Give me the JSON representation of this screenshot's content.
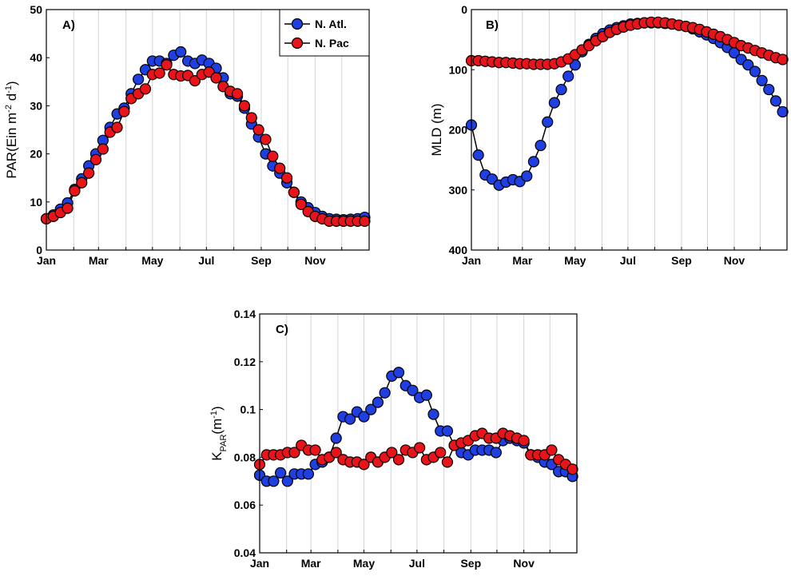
{
  "chart_data": [
    {
      "type": "line",
      "panel": "A)",
      "ylabel": [
        {
          "text": "PAR(Ein m"
        },
        {
          "text": "-2",
          "shift": "super"
        },
        {
          "text": " d"
        },
        {
          "text": "-1",
          "shift": "super"
        },
        {
          "text": ")"
        }
      ],
      "x": [
        1,
        9,
        17,
        25,
        33,
        41,
        49,
        57,
        65,
        73,
        81,
        89,
        97,
        105,
        113,
        121,
        129,
        137,
        145,
        153,
        161,
        169,
        177,
        185,
        193,
        201,
        209,
        217,
        225,
        233,
        241,
        249,
        257,
        265,
        273,
        281,
        289,
        297,
        305,
        313,
        321,
        329,
        337,
        345,
        353,
        361
      ],
      "xlim": [
        1,
        366
      ],
      "xticks": [
        {
          "value": 1,
          "label": "Jan"
        },
        {
          "value": 32,
          "label": null
        },
        {
          "value": 60,
          "label": "Mar"
        },
        {
          "value": 91,
          "label": null
        },
        {
          "value": 121,
          "label": "May"
        },
        {
          "value": 152,
          "label": null
        },
        {
          "value": 182,
          "label": "Jul"
        },
        {
          "value": 213,
          "label": null
        },
        {
          "value": 244,
          "label": "Sep"
        },
        {
          "value": 274,
          "label": null
        },
        {
          "value": 305,
          "label": "Nov"
        },
        {
          "value": 335,
          "label": null
        }
      ],
      "ylim": [
        0,
        50
      ],
      "yticks": [
        0,
        10,
        20,
        30,
        40,
        50
      ],
      "grid": true,
      "legend": "upper right",
      "series": [
        {
          "name": "N. Atl.",
          "color": "#1f3fe0",
          "values": [
            6.5,
            7.3,
            8.5,
            9.8,
            12.6,
            14.8,
            17.5,
            20,
            22.8,
            25.5,
            28.3,
            29.5,
            32.5,
            35.5,
            37.5,
            39.3,
            39.3,
            38.8,
            40.5,
            41.2,
            39.3,
            38.8,
            39.5,
            38.8,
            37.8,
            35.8,
            32.5,
            32,
            29.5,
            26.2,
            23.5,
            20,
            17.5,
            16,
            14,
            12,
            10,
            8.8,
            7.8,
            7,
            6.5,
            6.4,
            6.3,
            6.4,
            6.5,
            6.8
          ]
        },
        {
          "name": "N. Pac",
          "color": "#e8141a",
          "values": [
            6.5,
            7,
            7.8,
            8.7,
            12.3,
            14,
            16,
            18.8,
            21,
            24.5,
            25.5,
            28.8,
            31.5,
            32.5,
            33.5,
            36.5,
            36.8,
            38.5,
            36.5,
            36.2,
            36.3,
            35.2,
            36.5,
            37,
            35.8,
            34,
            33,
            32.5,
            30,
            27.5,
            25,
            23,
            19.5,
            17,
            15,
            12,
            9.5,
            8,
            7,
            6.5,
            6,
            6,
            6,
            6,
            6,
            6
          ]
        }
      ]
    },
    {
      "type": "line",
      "panel": "B)",
      "ylabel": [
        {
          "text": "MLD (m)"
        }
      ],
      "x": [
        1,
        9,
        17,
        25,
        33,
        41,
        49,
        57,
        65,
        73,
        81,
        89,
        97,
        105,
        113,
        121,
        129,
        137,
        145,
        153,
        161,
        169,
        177,
        185,
        193,
        201,
        209,
        217,
        225,
        233,
        241,
        249,
        257,
        265,
        273,
        281,
        289,
        297,
        305,
        313,
        321,
        329,
        337,
        345,
        353,
        361
      ],
      "xlim": [
        1,
        366
      ],
      "xticks": [
        {
          "value": 1,
          "label": "Jan"
        },
        {
          "value": 32,
          "label": null
        },
        {
          "value": 60,
          "label": "Mar"
        },
        {
          "value": 91,
          "label": null
        },
        {
          "value": 121,
          "label": "May"
        },
        {
          "value": 152,
          "label": null
        },
        {
          "value": 182,
          "label": "Jul"
        },
        {
          "value": 213,
          "label": null
        },
        {
          "value": 244,
          "label": "Sep"
        },
        {
          "value": 274,
          "label": null
        },
        {
          "value": 305,
          "label": "Nov"
        },
        {
          "value": 335,
          "label": null
        }
      ],
      "ylim": [
        400,
        0
      ],
      "yticks": [
        0,
        100,
        200,
        300,
        400
      ],
      "grid": true,
      "series": [
        {
          "color": "#1f3fe0",
          "values": [
            192,
            242,
            275,
            282,
            292,
            287,
            283,
            286,
            277,
            253,
            226,
            187,
            155,
            133,
            111,
            92,
            70,
            58,
            48,
            40,
            34,
            30,
            27,
            24,
            23,
            22,
            22,
            22,
            23,
            24,
            26,
            28,
            32,
            37,
            42,
            48,
            55,
            63,
            72,
            83,
            92,
            103,
            118,
            133,
            152,
            170
          ]
        },
        {
          "color": "#e8141a",
          "values": [
            85,
            85,
            86,
            87,
            88,
            88,
            89,
            90,
            90,
            91,
            91,
            91,
            90,
            87,
            82,
            75,
            67,
            60,
            52,
            45,
            38,
            33,
            29,
            26,
            24,
            22,
            21,
            21,
            22,
            24,
            26,
            28,
            30,
            33,
            37,
            41,
            45,
            50,
            55,
            60,
            64,
            68,
            72,
            76,
            80,
            83
          ]
        }
      ]
    },
    {
      "type": "line",
      "panel": "C)",
      "ylabel": [
        {
          "text": "K"
        },
        {
          "text": "PAR",
          "shift": "sub"
        },
        {
          "text": "(m"
        },
        {
          "text": "-1",
          "shift": "super"
        },
        {
          "text": ")"
        }
      ],
      "x": [
        1,
        9,
        17,
        25,
        33,
        41,
        49,
        57,
        65,
        73,
        81,
        89,
        97,
        105,
        113,
        121,
        129,
        137,
        145,
        153,
        161,
        169,
        177,
        185,
        193,
        201,
        209,
        217,
        225,
        233,
        241,
        249,
        257,
        265,
        273,
        281,
        289,
        297,
        305,
        313,
        321,
        329,
        337,
        345,
        353,
        361
      ],
      "xlim": [
        1,
        366
      ],
      "xticks": [
        {
          "value": 1,
          "label": "Jan"
        },
        {
          "value": 32,
          "label": null
        },
        {
          "value": 60,
          "label": "Mar"
        },
        {
          "value": 91,
          "label": null
        },
        {
          "value": 121,
          "label": "May"
        },
        {
          "value": 152,
          "label": null
        },
        {
          "value": 182,
          "label": "Jul"
        },
        {
          "value": 213,
          "label": null
        },
        {
          "value": 244,
          "label": "Sep"
        },
        {
          "value": 274,
          "label": null
        },
        {
          "value": 305,
          "label": "Nov"
        },
        {
          "value": 335,
          "label": null
        }
      ],
      "ylim": [
        0.04,
        0.14
      ],
      "yticks": [
        0.04,
        0.06,
        0.08,
        0.1,
        0.12,
        0.14
      ],
      "grid": true,
      "series": [
        {
          "color": "#1f3fe0",
          "values": [
            0.0725,
            0.07,
            0.07,
            0.0735,
            0.07,
            0.073,
            0.073,
            0.073,
            0.077,
            0.078,
            0.08,
            0.088,
            0.097,
            0.096,
            0.099,
            0.097,
            0.1,
            0.103,
            0.107,
            0.114,
            0.1155,
            0.11,
            0.108,
            0.105,
            0.106,
            0.098,
            0.091,
            0.091,
            0.085,
            0.082,
            0.081,
            0.083,
            0.083,
            0.083,
            0.082,
            0.087,
            0.088,
            0.087,
            0.086,
            0.081,
            0.08,
            0.078,
            0.077,
            0.074,
            0.074,
            0.072
          ]
        },
        {
          "color": "#e8141a",
          "values": [
            0.077,
            0.081,
            0.081,
            0.081,
            0.082,
            0.082,
            0.085,
            0.083,
            0.083,
            0.079,
            0.08,
            0.082,
            0.079,
            0.078,
            0.078,
            0.077,
            0.08,
            0.078,
            0.08,
            0.082,
            0.079,
            0.083,
            0.082,
            0.084,
            0.079,
            0.08,
            0.082,
            0.078,
            0.085,
            0.086,
            0.087,
            0.089,
            0.09,
            0.088,
            0.088,
            0.09,
            0.089,
            0.088,
            0.087,
            0.081,
            0.081,
            0.081,
            0.083,
            0.079,
            0.077,
            0.075
          ]
        }
      ]
    }
  ]
}
